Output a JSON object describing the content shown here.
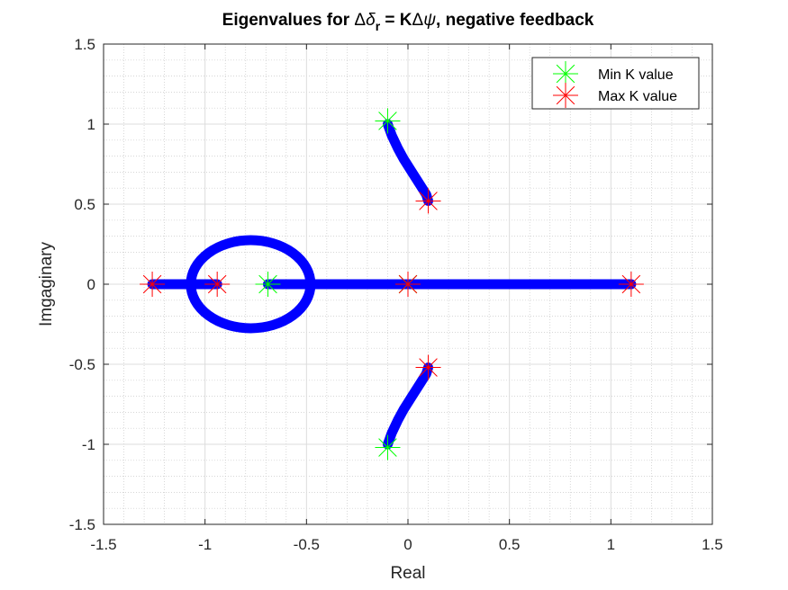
{
  "chart_data": {
    "type": "scatter",
    "title_parts": {
      "prefix": "Eigenvalues for ",
      "delta_symbol": "Δ",
      "delta_small": "δ",
      "subscript": "r",
      "equals": " = K",
      "psi_symbol": "ψ",
      "suffix": ", negative feedback"
    },
    "xlabel": "Real",
    "ylabel": "Imgaginary",
    "xlim": [
      -1.5,
      1.5
    ],
    "ylim": [
      -1.5,
      1.5
    ],
    "xticks": [
      -1.5,
      -1,
      -0.5,
      0,
      0.5,
      1,
      1.5
    ],
    "yticks": [
      -1.5,
      -1,
      -0.5,
      0,
      0.5,
      1,
      1.5
    ],
    "xtick_labels": [
      "-1.5",
      "-1",
      "-0.5",
      "0",
      "0.5",
      "1",
      "1.5"
    ],
    "ytick_labels": [
      "-1.5",
      "-1",
      "-0.5",
      "0",
      "0.5",
      "1",
      "1.5"
    ],
    "grid": true,
    "minor_grid": true,
    "legend": {
      "placement": "top-right",
      "entries": [
        {
          "label": "Min K value",
          "color": "#00ff00",
          "marker": "asterisk"
        },
        {
          "label": "Max K value",
          "color": "#ff0000",
          "marker": "asterisk"
        }
      ]
    },
    "locus_color": "#0000ff",
    "branches": [
      {
        "name": "upper",
        "points": [
          [
            -0.1,
            1.0
          ],
          [
            -0.08,
            0.93
          ],
          [
            -0.05,
            0.85
          ],
          [
            -0.02,
            0.78
          ],
          [
            0.02,
            0.7
          ],
          [
            0.06,
            0.62
          ],
          [
            0.09,
            0.56
          ],
          [
            0.1,
            0.52
          ]
        ]
      },
      {
        "name": "lower",
        "points": [
          [
            -0.1,
            -1.0
          ],
          [
            -0.08,
            -0.93
          ],
          [
            -0.05,
            -0.85
          ],
          [
            -0.02,
            -0.78
          ],
          [
            0.02,
            -0.7
          ],
          [
            0.06,
            -0.62
          ],
          [
            0.09,
            -0.56
          ],
          [
            0.1,
            -0.52
          ]
        ]
      },
      {
        "name": "real-right",
        "points": [
          [
            0.0,
            0.0
          ],
          [
            1.1,
            0.0
          ]
        ]
      },
      {
        "name": "real-mid",
        "points": [
          [
            -0.69,
            0.0
          ],
          [
            0.0,
            0.0
          ]
        ]
      },
      {
        "name": "real-left",
        "points": [
          [
            -1.26,
            0.0
          ],
          [
            -1.08,
            0.0
          ]
        ]
      },
      {
        "name": "real-inner",
        "points": [
          [
            -0.94,
            0.0
          ],
          [
            -1.08,
            0.0
          ]
        ]
      },
      {
        "name": "loop",
        "center": [
          -0.775,
          0.0
        ],
        "radii": [
          0.295,
          0.275
        ]
      }
    ],
    "min_k_points": [
      [
        -0.1,
        1.02
      ],
      [
        -0.1,
        -1.02
      ],
      [
        -0.69,
        0.0
      ],
      [
        0.0,
        0.0
      ]
    ],
    "max_k_points": [
      [
        0.1,
        0.52
      ],
      [
        0.1,
        -0.52
      ],
      [
        -1.26,
        0.0
      ],
      [
        -0.94,
        0.0
      ],
      [
        1.1,
        0.0
      ],
      [
        0.0,
        0.0
      ]
    ]
  }
}
